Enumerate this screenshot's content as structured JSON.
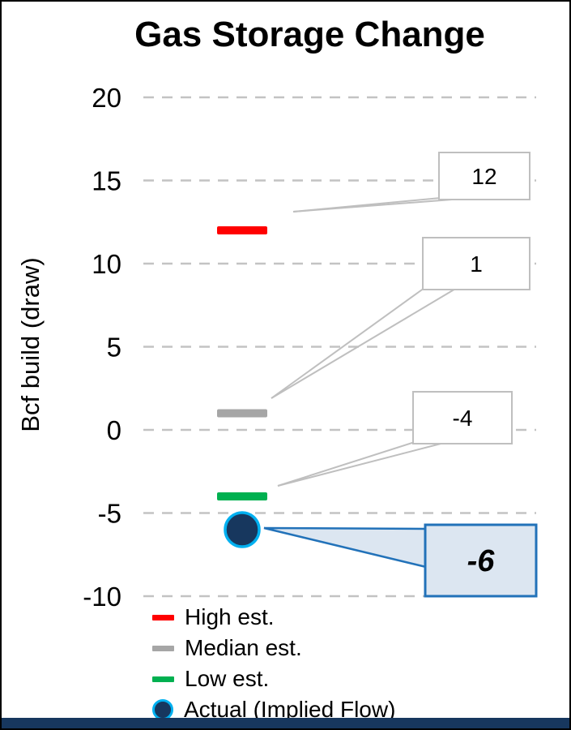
{
  "title": "Gas Storage Change",
  "chart_data": {
    "type": "scatter",
    "title": "Gas Storage Change",
    "xlabel": "",
    "ylabel": "Bcf build (draw)",
    "ylim": [
      -10,
      20
    ],
    "yticks": [
      20,
      15,
      10,
      5,
      0,
      -5,
      -10
    ],
    "grid": true,
    "grid_style": "dashed horizontal",
    "legend_position": "bottom-left",
    "series": [
      {
        "name": "High est.",
        "value": 12,
        "marker": "dash",
        "color": "#ff0000",
        "callout_label": "12",
        "callout_style": "plain"
      },
      {
        "name": "Median est.",
        "value": 1,
        "marker": "dash",
        "color": "#a6a6a6",
        "callout_label": "1",
        "callout_style": "plain"
      },
      {
        "name": "Low est.",
        "value": -4,
        "marker": "dash",
        "color": "#00b050",
        "callout_label": "-4",
        "callout_style": "plain"
      },
      {
        "name": "Actual (Implied Flow)",
        "value": -6,
        "marker": "circle",
        "color": "#17375e",
        "ring_color": "#00b0f0",
        "callout_label": "-6",
        "callout_style": "highlight"
      }
    ]
  },
  "colors": {
    "grid": "#c3c3c3",
    "tick_text": "#000000",
    "callout_fill": "#ffffff",
    "callout_border": "#bfbfbf",
    "callout_text": "#000000",
    "highlight_fill": "#dce6f1",
    "highlight_border": "#2272b9",
    "bottom_bar": "#17375e"
  }
}
